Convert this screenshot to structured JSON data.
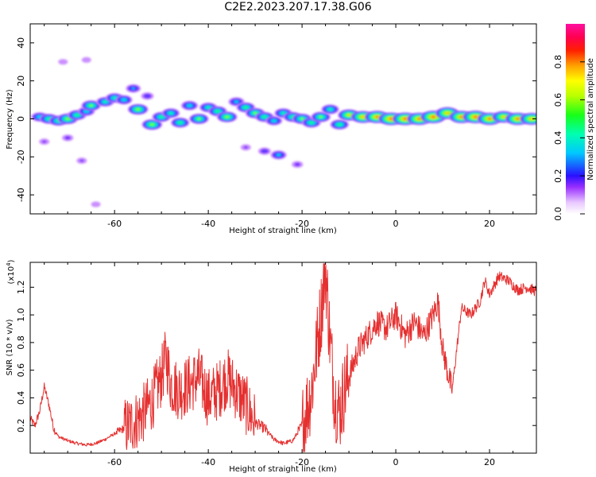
{
  "title": "C2E2.2023.207.17.38.G06",
  "colors": {
    "snr_line": "#e53030",
    "axis": "#000000"
  },
  "chart_data": [
    {
      "type": "heatmap",
      "xlabel": "Height of straight line (km)",
      "ylabel": "Frequency (Hz)",
      "xlim": [
        -78,
        30
      ],
      "ylim": [
        -50,
        50
      ],
      "x_ticks": [
        -60,
        -40,
        -20,
        0,
        20
      ],
      "x_tick_labels": [
        "-60",
        "-40",
        "-20",
        "0",
        "20"
      ],
      "y_ticks": [
        -40,
        -20,
        0,
        20,
        40
      ],
      "y_tick_labels": [
        "-40",
        "-20",
        "0",
        "20",
        "40"
      ],
      "colorbar": {
        "label": "Normalized spectral amplitude",
        "range": [
          0.0,
          1.0
        ],
        "ticks": [
          0.0,
          0.2,
          0.4,
          0.6,
          0.8
        ],
        "tick_labels": [
          "0.0",
          "0.2",
          "0.4",
          "0.6",
          "0.8"
        ],
        "colormap": "rainbow (white-violet-blue-cyan-green-yellow-red-magenta)"
      },
      "blobs": [
        {
          "x": -76,
          "y": 1,
          "amp": 0.4
        },
        {
          "x": -74,
          "y": 0,
          "amp": 0.5
        },
        {
          "x": -72,
          "y": -1,
          "amp": 0.5
        },
        {
          "x": -70,
          "y": 0,
          "amp": 0.6
        },
        {
          "x": -68,
          "y": 2,
          "amp": 0.5
        },
        {
          "x": -66,
          "y": 4,
          "amp": 0.4
        },
        {
          "x": -65,
          "y": 7,
          "amp": 0.55
        },
        {
          "x": -62,
          "y": 9,
          "amp": 0.45
        },
        {
          "x": -60,
          "y": 11,
          "amp": 0.45
        },
        {
          "x": -58,
          "y": 10,
          "amp": 0.4
        },
        {
          "x": -56,
          "y": 16,
          "amp": 0.3
        },
        {
          "x": -55,
          "y": 5,
          "amp": 0.6
        },
        {
          "x": -52,
          "y": -3,
          "amp": 0.6
        },
        {
          "x": -50,
          "y": 1,
          "amp": 0.5
        },
        {
          "x": -48,
          "y": 3,
          "amp": 0.45
        },
        {
          "x": -46,
          "y": -2,
          "amp": 0.5
        },
        {
          "x": -44,
          "y": 7,
          "amp": 0.4
        },
        {
          "x": -42,
          "y": 0,
          "amp": 0.55
        },
        {
          "x": -40,
          "y": 6,
          "amp": 0.45
        },
        {
          "x": -38,
          "y": 4,
          "amp": 0.5
        },
        {
          "x": -36,
          "y": 1,
          "amp": 0.6
        },
        {
          "x": -34,
          "y": 9,
          "amp": 0.35
        },
        {
          "x": -32,
          "y": 6,
          "amp": 0.5
        },
        {
          "x": -30,
          "y": 3,
          "amp": 0.55
        },
        {
          "x": -28,
          "y": 1,
          "amp": 0.5
        },
        {
          "x": -26,
          "y": -1,
          "amp": 0.4
        },
        {
          "x": -24,
          "y": 3,
          "amp": 0.45
        },
        {
          "x": -22,
          "y": 1,
          "amp": 0.5
        },
        {
          "x": -20,
          "y": 0,
          "amp": 0.55
        },
        {
          "x": -18,
          "y": -2,
          "amp": 0.5
        },
        {
          "x": -16,
          "y": 1,
          "amp": 0.55
        },
        {
          "x": -14,
          "y": 5,
          "amp": 0.45
        },
        {
          "x": -12,
          "y": -3,
          "amp": 0.5
        },
        {
          "x": -10,
          "y": 2,
          "amp": 0.7
        },
        {
          "x": -7,
          "y": 1,
          "amp": 0.8
        },
        {
          "x": -4,
          "y": 1,
          "amp": 0.85
        },
        {
          "x": -1,
          "y": 0,
          "amp": 0.9
        },
        {
          "x": 2,
          "y": 0,
          "amp": 0.9
        },
        {
          "x": 5,
          "y": 0,
          "amp": 0.85
        },
        {
          "x": 8,
          "y": 1,
          "amp": 0.9
        },
        {
          "x": 11,
          "y": 3,
          "amp": 0.8
        },
        {
          "x": 14,
          "y": 1,
          "amp": 0.85
        },
        {
          "x": 17,
          "y": 1,
          "amp": 0.9
        },
        {
          "x": 20,
          "y": 0,
          "amp": 0.85
        },
        {
          "x": 23,
          "y": 1,
          "amp": 0.75
        },
        {
          "x": 26,
          "y": 0,
          "amp": 0.85
        },
        {
          "x": 29,
          "y": 0,
          "amp": 0.8
        },
        {
          "x": -25,
          "y": -19,
          "amp": 0.35
        },
        {
          "x": -28,
          "y": -17,
          "amp": 0.2
        },
        {
          "x": -21,
          "y": -24,
          "amp": 0.15
        },
        {
          "x": -32,
          "y": -15,
          "amp": 0.12
        },
        {
          "x": -70,
          "y": -10,
          "amp": 0.15
        },
        {
          "x": -67,
          "y": -22,
          "amp": 0.12
        },
        {
          "x": -71,
          "y": 30,
          "amp": 0.1
        },
        {
          "x": -66,
          "y": 31,
          "amp": 0.1
        },
        {
          "x": -64,
          "y": -45,
          "amp": 0.1
        },
        {
          "x": -75,
          "y": -12,
          "amp": 0.12
        },
        {
          "x": -53,
          "y": 12,
          "amp": 0.2
        }
      ]
    },
    {
      "type": "line",
      "xlabel": "Height of straight line (km)",
      "ylabel": "SNR (10 * v/v)",
      "y_scale_label": "(x10",
      "y_scale_exponent": "4",
      "y_scale_suffix": ")",
      "xlim": [
        -78,
        30
      ],
      "ylim": [
        0,
        1.38
      ],
      "x_ticks": [
        -60,
        -40,
        -20,
        0,
        20
      ],
      "x_tick_labels": [
        "-60",
        "-40",
        "-20",
        "0",
        "20"
      ],
      "y_ticks": [
        0.2,
        0.4,
        0.6,
        0.8,
        1.0,
        1.2
      ],
      "y_tick_labels": [
        "0.2",
        "0.4",
        "0.6",
        "0.8",
        "1.0",
        "1.2"
      ],
      "series": [
        {
          "x": [
            -78,
            -77,
            -76,
            -75,
            -74,
            -73,
            -72,
            -70,
            -68,
            -66,
            -64,
            -62,
            -60,
            -58,
            -56,
            -54,
            -52,
            -50,
            -49,
            -48,
            -46,
            -44,
            -42,
            -40,
            -38,
            -36,
            -34,
            -32,
            -30,
            -28,
            -26,
            -24,
            -22,
            -20,
            -18,
            -16,
            -15,
            -14,
            -13,
            -12,
            -11,
            -10,
            -8,
            -6,
            -4,
            -2,
            0,
            2,
            4,
            6,
            8,
            9,
            10,
            11,
            12,
            14,
            16,
            18,
            19,
            20,
            22,
            24,
            26,
            28,
            30
          ],
          "y": [
            0.25,
            0.2,
            0.3,
            0.48,
            0.35,
            0.18,
            0.12,
            0.09,
            0.07,
            0.06,
            0.07,
            0.1,
            0.14,
            0.18,
            0.22,
            0.28,
            0.38,
            0.55,
            0.7,
            0.5,
            0.45,
            0.5,
            0.55,
            0.4,
            0.45,
            0.55,
            0.45,
            0.35,
            0.22,
            0.18,
            0.1,
            0.07,
            0.09,
            0.2,
            0.45,
            1.0,
            1.35,
            0.8,
            0.4,
            0.3,
            0.45,
            0.55,
            0.75,
            0.85,
            0.95,
            0.9,
            1.0,
            0.85,
            0.95,
            0.85,
            1.0,
            1.1,
            0.75,
            0.6,
            0.45,
            1.05,
            1.0,
            1.1,
            1.25,
            1.15,
            1.28,
            1.25,
            1.18,
            1.2,
            1.17
          ]
        }
      ]
    }
  ]
}
